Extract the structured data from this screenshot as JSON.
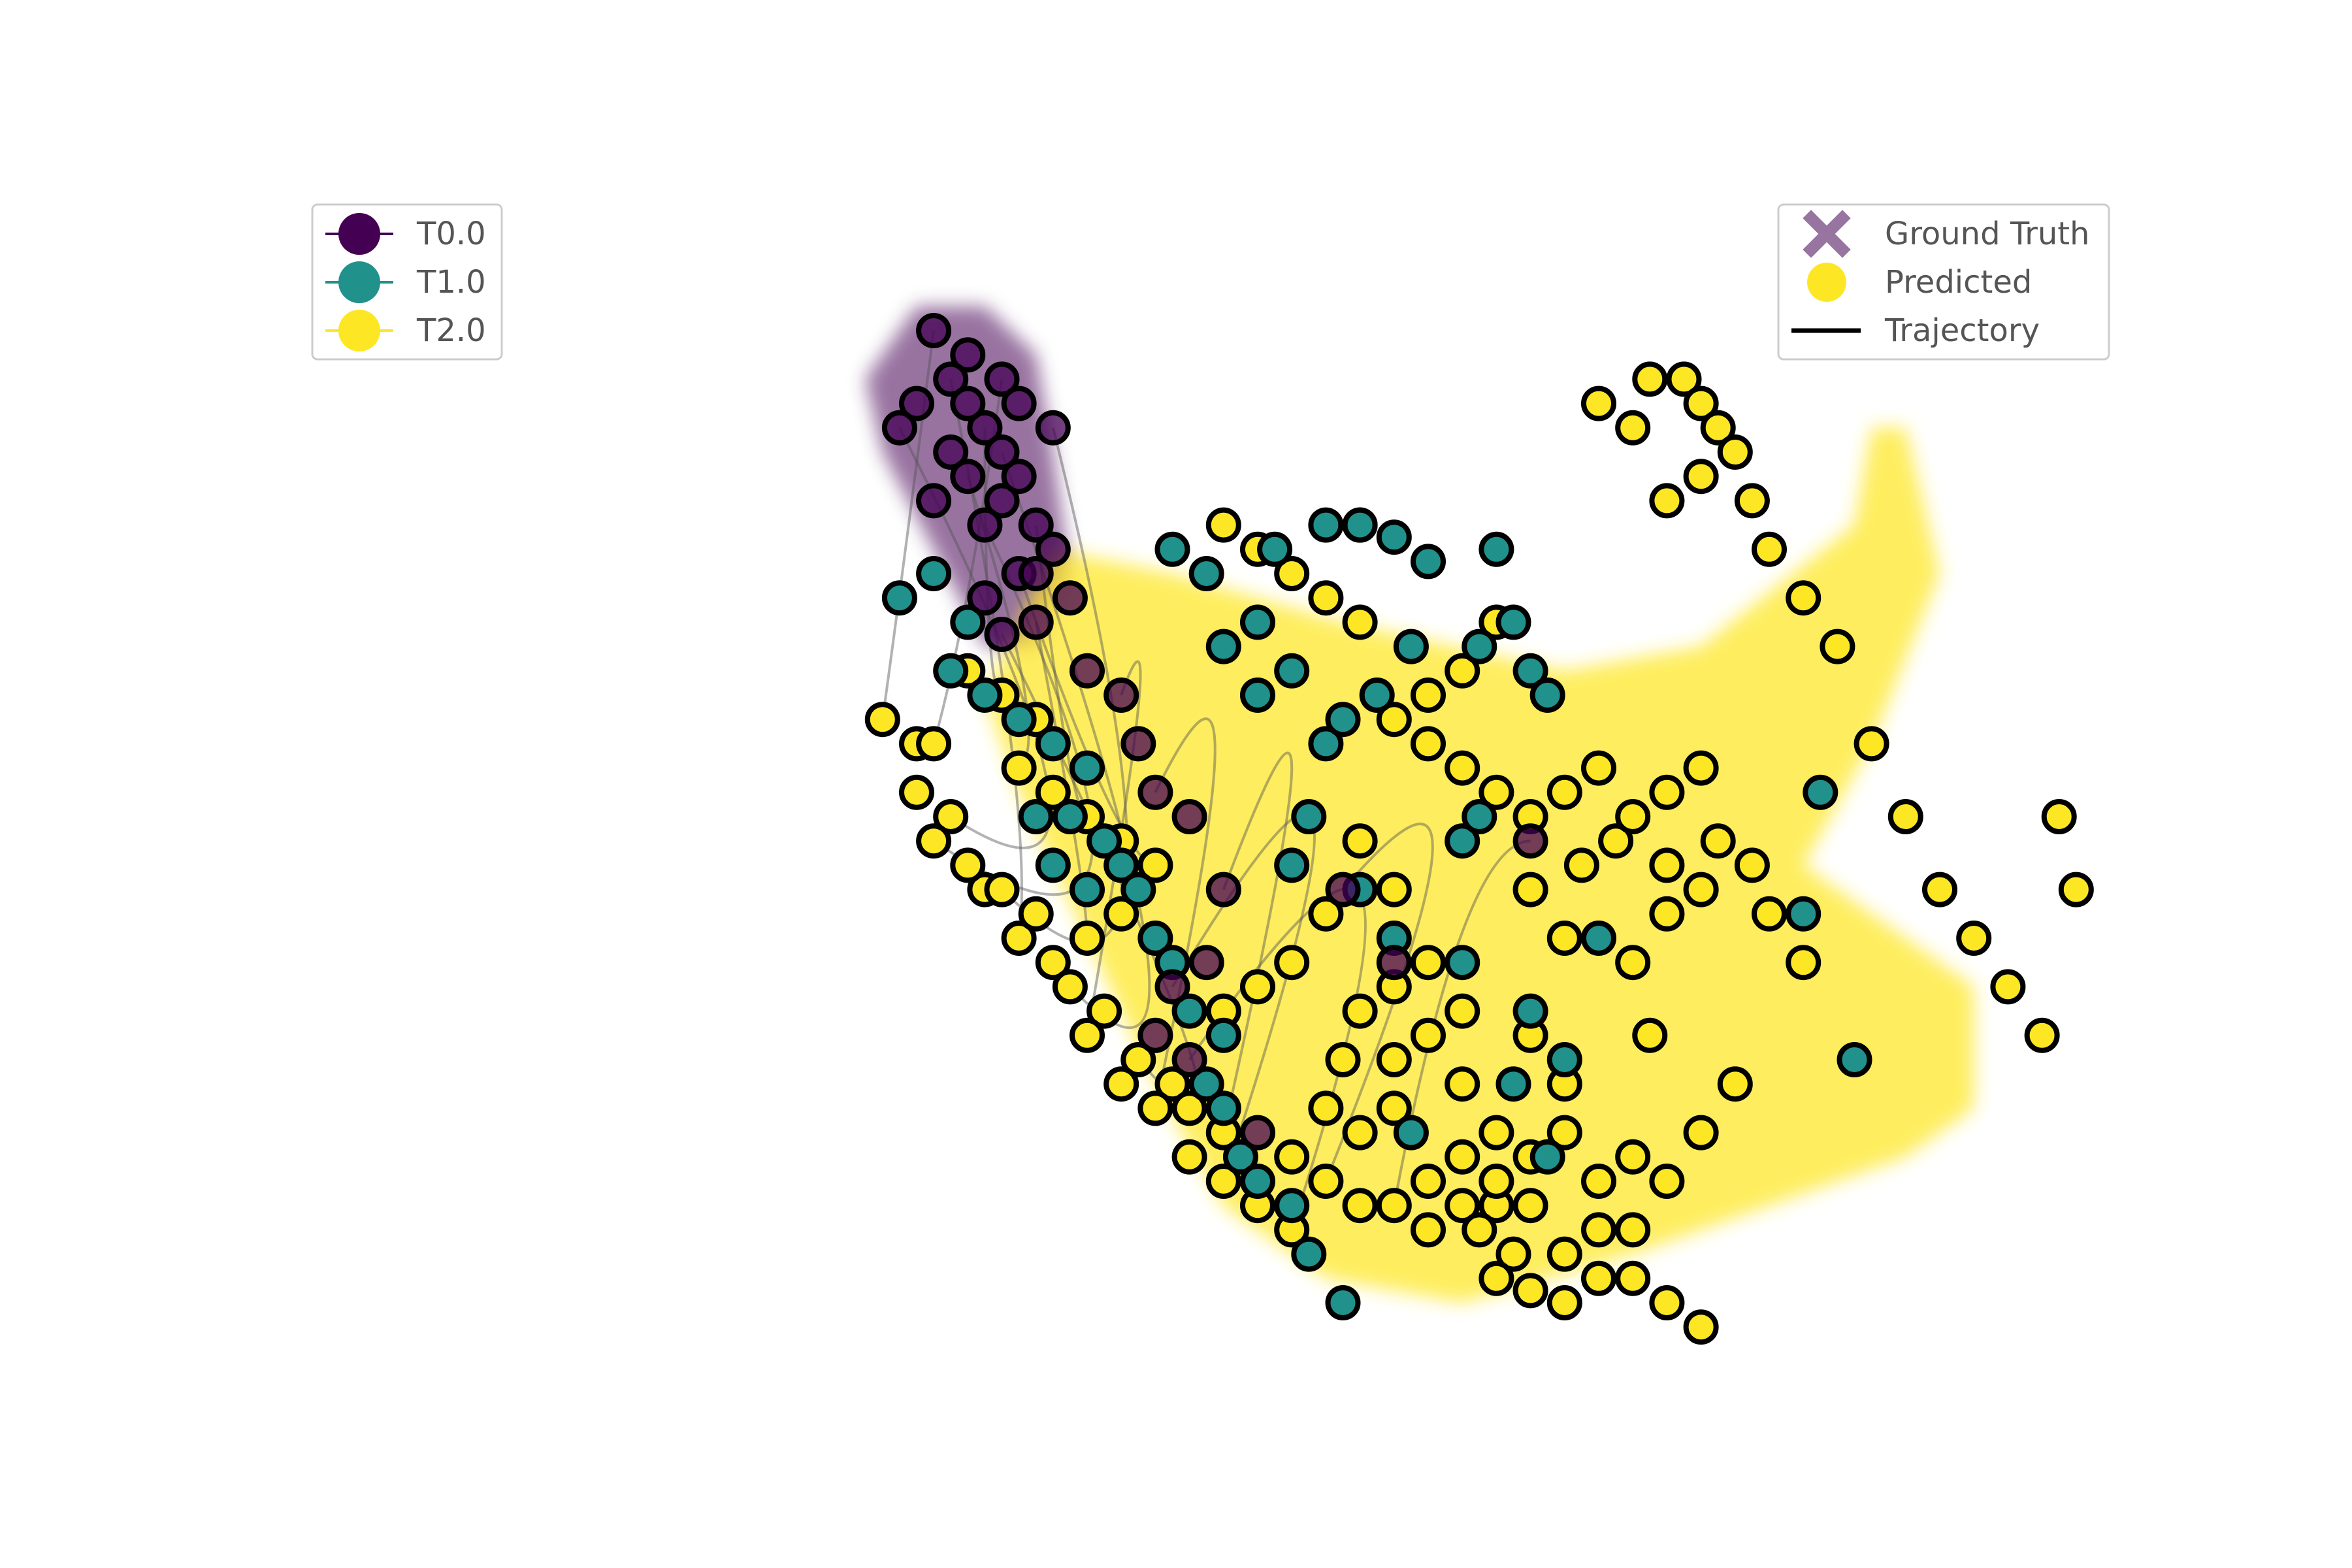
{
  "chart_data": {
    "type": "scatter",
    "title": "",
    "xlabel": "",
    "ylabel": "",
    "axes_visible": false,
    "grid": false,
    "xlim": [
      0,
      100
    ],
    "ylim": [
      0,
      100
    ],
    "colors": {
      "T0.0": "#440154",
      "T1.0": "#21918c",
      "T2.0": "#fde725",
      "edge": "#000000",
      "trajectory": "#555555"
    },
    "time_legend": {
      "placement": "upper-left",
      "entries": [
        {
          "label": "T0.0",
          "color": "#440154"
        },
        {
          "label": "T1.0",
          "color": "#21918c"
        },
        {
          "label": "T2.0",
          "color": "#fde725"
        }
      ]
    },
    "type_legend": {
      "placement": "upper-right",
      "entries": [
        {
          "label": "Ground Truth",
          "marker": "x",
          "color": "#440154"
        },
        {
          "label": "Predicted",
          "marker": "o",
          "color": "#fde725"
        },
        {
          "label": "Trajectory",
          "marker": "line",
          "color": "#000000"
        }
      ]
    },
    "series": [
      {
        "name": "T0.0",
        "ground_truth_region": [
          [
            30,
            92
          ],
          [
            34,
            92
          ],
          [
            37,
            88
          ],
          [
            38,
            80
          ],
          [
            39,
            70
          ],
          [
            37,
            64
          ],
          [
            34,
            64
          ],
          [
            31,
            72
          ],
          [
            28,
            80
          ],
          [
            27,
            86
          ]
        ],
        "predicted": [
          [
            31,
            90
          ],
          [
            33,
            88
          ],
          [
            35,
            86
          ],
          [
            36,
            84
          ],
          [
            34,
            82
          ],
          [
            32,
            80
          ],
          [
            33,
            78
          ],
          [
            35,
            76
          ],
          [
            37,
            74
          ],
          [
            38,
            72
          ],
          [
            36,
            70
          ],
          [
            34,
            68
          ],
          [
            37,
            66
          ],
          [
            39,
            68
          ],
          [
            32,
            86
          ],
          [
            30,
            84
          ],
          [
            29,
            82
          ],
          [
            31,
            76
          ],
          [
            34,
            74
          ],
          [
            36,
            78
          ],
          [
            38,
            82
          ],
          [
            33,
            84
          ],
          [
            35,
            80
          ],
          [
            37,
            70
          ],
          [
            35,
            65
          ],
          [
            40,
            62
          ],
          [
            42,
            60
          ],
          [
            43,
            56
          ],
          [
            44,
            52
          ],
          [
            46,
            50
          ],
          [
            48,
            44
          ],
          [
            47,
            38
          ],
          [
            45,
            36
          ],
          [
            44,
            32
          ],
          [
            46,
            30
          ],
          [
            50,
            24
          ],
          [
            55,
            44
          ],
          [
            58,
            38
          ],
          [
            66,
            48
          ]
        ]
      },
      {
        "name": "T1.0",
        "predicted": [
          [
            29,
            68
          ],
          [
            31,
            70
          ],
          [
            33,
            66
          ],
          [
            32,
            62
          ],
          [
            34,
            60
          ],
          [
            36,
            58
          ],
          [
            38,
            56
          ],
          [
            40,
            54
          ],
          [
            39,
            50
          ],
          [
            41,
            48
          ],
          [
            42,
            46
          ],
          [
            43,
            44
          ],
          [
            40,
            44
          ],
          [
            38,
            46
          ],
          [
            37,
            50
          ],
          [
            44,
            40
          ],
          [
            45,
            38
          ],
          [
            46,
            34
          ],
          [
            48,
            32
          ],
          [
            47,
            28
          ],
          [
            48,
            26
          ],
          [
            49,
            22
          ],
          [
            50,
            20
          ],
          [
            52,
            18
          ],
          [
            53,
            14
          ],
          [
            55,
            10
          ],
          [
            45,
            72
          ],
          [
            47,
            70
          ],
          [
            51,
            72
          ],
          [
            54,
            74
          ],
          [
            56,
            74
          ],
          [
            58,
            73
          ],
          [
            60,
            71
          ],
          [
            64,
            72
          ],
          [
            63,
            64
          ],
          [
            65,
            66
          ],
          [
            66,
            62
          ],
          [
            67,
            60
          ],
          [
            62,
            48
          ],
          [
            63,
            50
          ],
          [
            62,
            38
          ],
          [
            65,
            28
          ],
          [
            67,
            22
          ],
          [
            70,
            40
          ],
          [
            66,
            34
          ],
          [
            68,
            30
          ],
          [
            59,
            24
          ],
          [
            85,
            30
          ],
          [
            82,
            42
          ],
          [
            83,
            52
          ],
          [
            48,
            64
          ],
          [
            50,
            66
          ],
          [
            52,
            62
          ],
          [
            50,
            60
          ],
          [
            54,
            56
          ],
          [
            55,
            58
          ],
          [
            53,
            50
          ],
          [
            52,
            46
          ],
          [
            56,
            44
          ],
          [
            58,
            40
          ],
          [
            57,
            60
          ],
          [
            59,
            64
          ],
          [
            56,
            74
          ]
        ]
      },
      {
        "name": "T2.0",
        "ground_truth_region": [
          [
            38,
            72
          ],
          [
            45,
            70
          ],
          [
            55,
            66
          ],
          [
            68,
            62
          ],
          [
            76,
            64
          ],
          [
            85,
            74
          ],
          [
            86,
            82
          ],
          [
            88,
            82
          ],
          [
            90,
            70
          ],
          [
            86,
            56
          ],
          [
            82,
            46
          ],
          [
            88,
            40
          ],
          [
            92,
            36
          ],
          [
            92,
            26
          ],
          [
            88,
            22
          ],
          [
            80,
            18
          ],
          [
            72,
            14
          ],
          [
            62,
            10
          ],
          [
            54,
            12
          ],
          [
            48,
            18
          ],
          [
            44,
            28
          ],
          [
            40,
            40
          ],
          [
            36,
            52
          ],
          [
            34,
            60
          ]
        ],
        "predicted": [
          [
            28,
            58
          ],
          [
            30,
            56
          ],
          [
            31,
            56
          ],
          [
            33,
            62
          ],
          [
            35,
            60
          ],
          [
            37,
            58
          ],
          [
            36,
            54
          ],
          [
            38,
            52
          ],
          [
            40,
            50
          ],
          [
            42,
            48
          ],
          [
            44,
            46
          ],
          [
            42,
            42
          ],
          [
            40,
            40
          ],
          [
            38,
            38
          ],
          [
            36,
            40
          ],
          [
            34,
            44
          ],
          [
            32,
            50
          ],
          [
            30,
            52
          ],
          [
            31,
            48
          ],
          [
            33,
            46
          ],
          [
            35,
            44
          ],
          [
            37,
            42
          ],
          [
            39,
            36
          ],
          [
            41,
            34
          ],
          [
            43,
            30
          ],
          [
            45,
            28
          ],
          [
            40,
            32
          ],
          [
            42,
            28
          ],
          [
            44,
            26
          ],
          [
            46,
            26
          ],
          [
            48,
            24
          ],
          [
            46,
            22
          ],
          [
            48,
            20
          ],
          [
            50,
            18
          ],
          [
            52,
            16
          ],
          [
            52,
            22
          ],
          [
            54,
            20
          ],
          [
            56,
            18
          ],
          [
            58,
            18
          ],
          [
            60,
            20
          ],
          [
            62,
            18
          ],
          [
            64,
            18
          ],
          [
            63,
            16
          ],
          [
            65,
            14
          ],
          [
            64,
            12
          ],
          [
            66,
            11
          ],
          [
            68,
            10
          ],
          [
            70,
            12
          ],
          [
            72,
            16
          ],
          [
            74,
            20
          ],
          [
            76,
            24
          ],
          [
            78,
            28
          ],
          [
            73,
            32
          ],
          [
            72,
            38
          ],
          [
            74,
            42
          ],
          [
            76,
            44
          ],
          [
            77,
            48
          ],
          [
            70,
            54
          ],
          [
            68,
            52
          ],
          [
            66,
            50
          ],
          [
            64,
            52
          ],
          [
            62,
            54
          ],
          [
            60,
            56
          ],
          [
            58,
            58
          ],
          [
            60,
            60
          ],
          [
            62,
            62
          ],
          [
            64,
            66
          ],
          [
            56,
            66
          ],
          [
            54,
            68
          ],
          [
            52,
            70
          ],
          [
            50,
            72
          ],
          [
            48,
            74
          ],
          [
            70,
            84
          ],
          [
            72,
            82
          ],
          [
            73,
            86
          ],
          [
            75,
            86
          ],
          [
            76,
            84
          ],
          [
            77,
            82
          ],
          [
            78,
            80
          ],
          [
            76,
            78
          ],
          [
            74,
            76
          ],
          [
            79,
            76
          ],
          [
            80,
            72
          ],
          [
            82,
            68
          ],
          [
            84,
            64
          ],
          [
            86,
            56
          ],
          [
            88,
            50
          ],
          [
            90,
            44
          ],
          [
            92,
            40
          ],
          [
            94,
            36
          ],
          [
            96,
            32
          ],
          [
            98,
            44
          ],
          [
            97,
            50
          ],
          [
            76,
            54
          ],
          [
            74,
            52
          ],
          [
            79,
            46
          ],
          [
            80,
            42
          ],
          [
            82,
            38
          ],
          [
            58,
            44
          ],
          [
            56,
            48
          ],
          [
            54,
            42
          ],
          [
            52,
            38
          ],
          [
            50,
            36
          ],
          [
            48,
            34
          ],
          [
            56,
            34
          ],
          [
            58,
            30
          ],
          [
            60,
            32
          ],
          [
            62,
            28
          ],
          [
            64,
            24
          ],
          [
            66,
            22
          ],
          [
            68,
            24
          ],
          [
            70,
            20
          ],
          [
            72,
            22
          ],
          [
            68,
            28
          ],
          [
            66,
            32
          ],
          [
            62,
            34
          ],
          [
            60,
            38
          ],
          [
            58,
            36
          ],
          [
            55,
            30
          ],
          [
            54,
            26
          ],
          [
            56,
            24
          ],
          [
            58,
            26
          ],
          [
            60,
            16
          ],
          [
            68,
            14
          ],
          [
            70,
            16
          ],
          [
            72,
            12
          ],
          [
            74,
            10
          ],
          [
            76,
            8
          ],
          [
            66,
            18
          ],
          [
            64,
            20
          ],
          [
            62,
            22
          ],
          [
            66,
            44
          ],
          [
            68,
            40
          ],
          [
            69,
            46
          ],
          [
            71,
            48
          ],
          [
            72,
            50
          ],
          [
            74,
            46
          ]
        ]
      }
    ]
  }
}
